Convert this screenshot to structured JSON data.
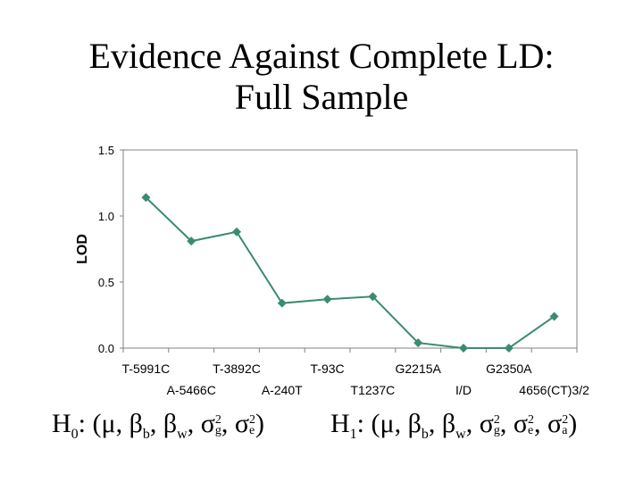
{
  "slide": {
    "title_line1": "Evidence Against Complete LD:",
    "title_line2": "Full Sample"
  },
  "chart_data": {
    "type": "line",
    "title": "",
    "ylabel": "LOD",
    "xlabel": "",
    "ylim": [
      0,
      1.5
    ],
    "yticks": [
      "0.0",
      "0.5",
      "1.0",
      "1.5"
    ],
    "grid": false,
    "legend": "none",
    "categories": [
      "T-5991C",
      "A-5466C",
      "T-3892C",
      "A-240T",
      "T-93C",
      "T1237C",
      "G2215A",
      "I/D",
      "G2350A",
      "4656(CT)3/2"
    ],
    "series": [
      {
        "values": [
          1.14,
          0.81,
          0.88,
          0.34,
          0.37,
          0.39,
          0.04,
          0.0,
          0.0,
          0.24
        ],
        "color": "#3a8c6e"
      }
    ]
  },
  "formulas": {
    "h0_prefix": "H",
    "h0_sub": "0",
    "h0_body": ": (μ, β",
    "h1_prefix": "H",
    "h1_sub": "1",
    "h1_body": ": (μ, β"
  }
}
